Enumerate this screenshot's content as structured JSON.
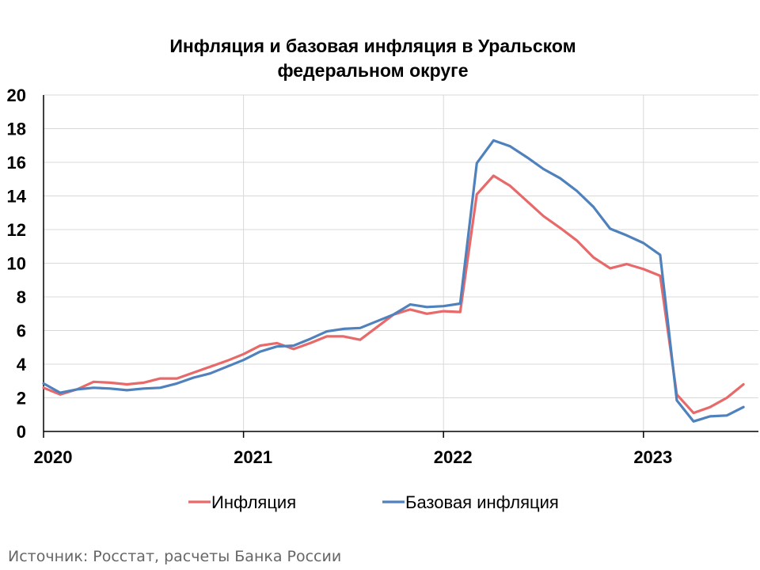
{
  "chart_data": {
    "type": "line",
    "title_lines": [
      "Инфляция и базовая инфляция в Уральском",
      "федеральном округе"
    ],
    "ylim": [
      0,
      20
    ],
    "yticks": [
      "0",
      "2",
      "4",
      "6",
      "8",
      "10",
      "12",
      "14",
      "16",
      "18",
      "20"
    ],
    "xlim": [
      "2020-01",
      "2023-07"
    ],
    "xticks": [
      "2020",
      "2021",
      "2022",
      "2023"
    ],
    "grid": true,
    "legend_position": "bottom",
    "x": [
      "2020-01",
      "2020-02",
      "2020-03",
      "2020-04",
      "2020-05",
      "2020-06",
      "2020-07",
      "2020-08",
      "2020-09",
      "2020-10",
      "2020-11",
      "2020-12",
      "2021-01",
      "2021-02",
      "2021-03",
      "2021-04",
      "2021-05",
      "2021-06",
      "2021-07",
      "2021-08",
      "2021-09",
      "2021-10",
      "2021-11",
      "2021-12",
      "2022-01",
      "2022-02",
      "2022-03",
      "2022-04",
      "2022-05",
      "2022-06",
      "2022-07",
      "2022-08",
      "2022-09",
      "2022-10",
      "2022-11",
      "2022-12",
      "2023-01",
      "2023-02",
      "2023-03",
      "2023-04",
      "2023-05",
      "2023-06",
      "2023-07"
    ],
    "series": [
      {
        "name": "Инфляция",
        "color": "#E8696A",
        "values": [
          2.6,
          2.2,
          2.5,
          2.95,
          2.9,
          2.8,
          2.9,
          3.15,
          3.15,
          3.5,
          3.85,
          4.2,
          4.6,
          5.1,
          5.25,
          4.9,
          5.25,
          5.65,
          5.65,
          5.45,
          6.2,
          6.95,
          7.25,
          7.0,
          7.15,
          7.1,
          14.1,
          15.2,
          14.6,
          13.7,
          12.8,
          12.1,
          11.35,
          10.35,
          9.7,
          9.95,
          9.65,
          9.25,
          2.2,
          1.1,
          1.45,
          2.0,
          2.8
        ]
      },
      {
        "name": "Базовая инфляция",
        "color": "#4F81BD",
        "values": [
          2.85,
          2.3,
          2.5,
          2.6,
          2.55,
          2.45,
          2.55,
          2.6,
          2.85,
          3.2,
          3.45,
          3.85,
          4.25,
          4.75,
          5.05,
          5.1,
          5.5,
          5.95,
          6.1,
          6.15,
          6.55,
          6.95,
          7.55,
          7.4,
          7.45,
          7.6,
          15.95,
          17.3,
          16.95,
          16.3,
          15.6,
          15.05,
          14.3,
          13.35,
          12.05,
          11.65,
          11.2,
          10.5,
          1.85,
          0.6,
          0.9,
          0.95,
          1.45
        ]
      }
    ]
  },
  "source_text": "Источник: Росстат, расчеты Банка России"
}
